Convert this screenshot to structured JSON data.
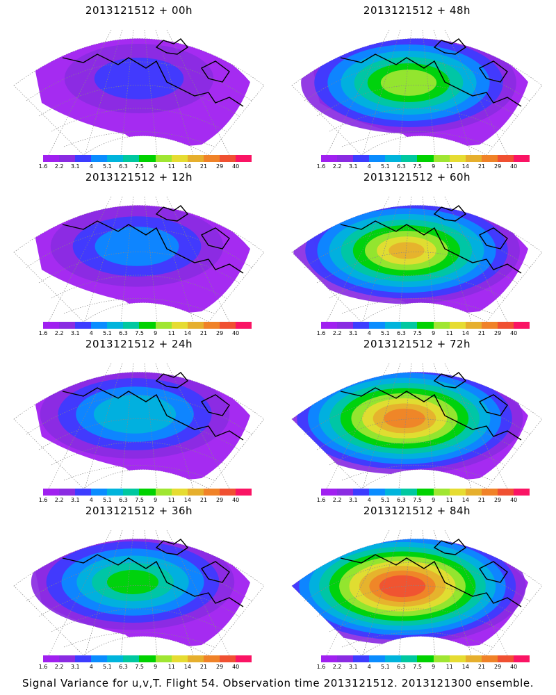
{
  "panels": [
    {
      "title": "2013121512 + 00h",
      "intensity": 0
    },
    {
      "title": "2013121512 + 48h",
      "intensity": 4
    },
    {
      "title": "2013121512 + 12h",
      "intensity": 1
    },
    {
      "title": "2013121512 + 60h",
      "intensity": 5
    },
    {
      "title": "2013121512 + 24h",
      "intensity": 2
    },
    {
      "title": "2013121512 + 72h",
      "intensity": 6
    },
    {
      "title": "2013121512 + 36h",
      "intensity": 3
    },
    {
      "title": "2013121512 + 84h",
      "intensity": 7
    }
  ],
  "colorbar": {
    "colors": [
      "#a020f0",
      "#8a2be2",
      "#3c3cff",
      "#0a8cff",
      "#00b4dc",
      "#00c8a0",
      "#00d200",
      "#a0e632",
      "#e6dc32",
      "#e6af2d",
      "#f08228",
      "#f05032",
      "#fa1464"
    ],
    "labels": [
      "1.6",
      "2.2",
      "3.1",
      "4",
      "5.1",
      "6.3",
      "7.5",
      "9",
      "11",
      "14",
      "21",
      "29",
      "40"
    ]
  },
  "footer": "Signal Variance for u,v,T. Flight 54. Observation time 2013121512. 2013121300 ensemble."
}
